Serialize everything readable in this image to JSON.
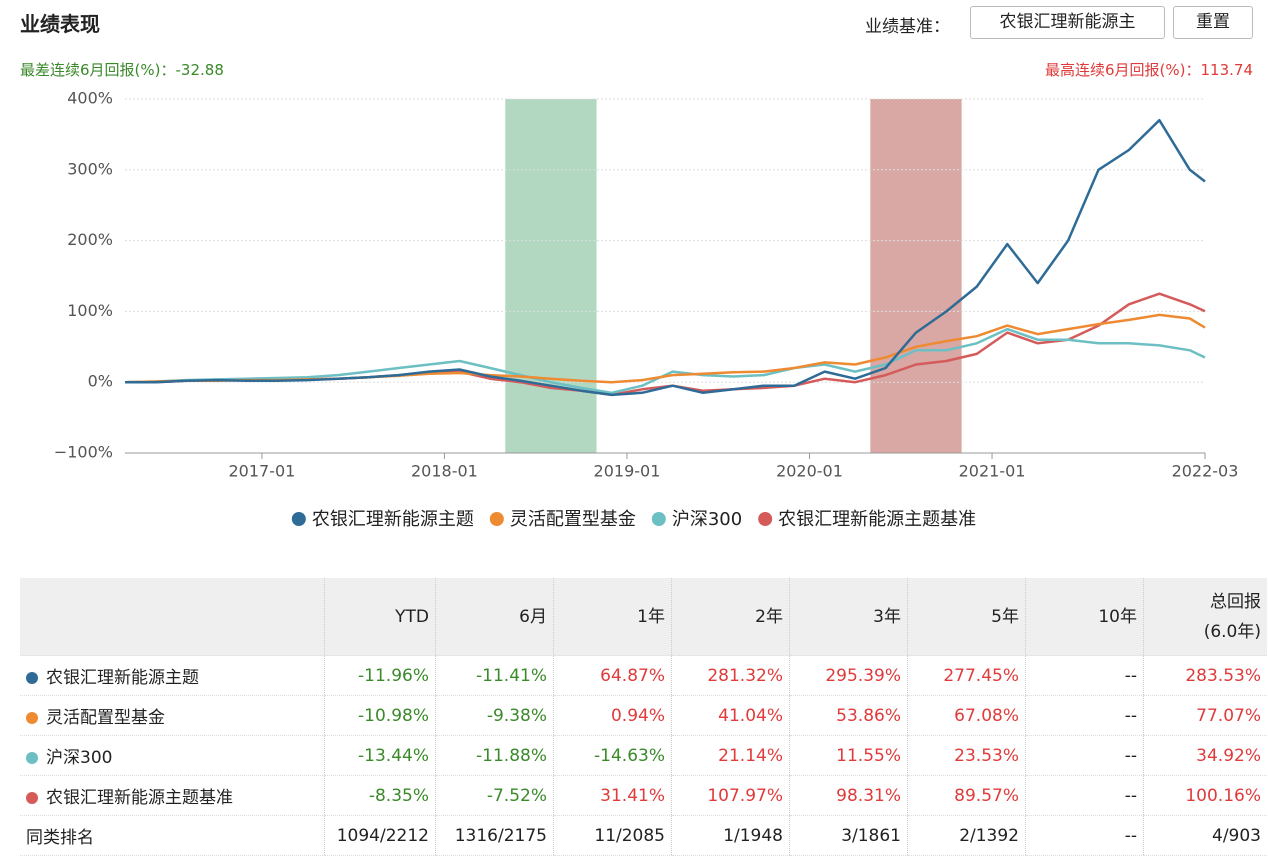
{
  "header": {
    "title": "业绩表现",
    "benchmark_label": "业绩基准：",
    "benchmark_select": "农银汇理新能源主",
    "reset_button": "重置"
  },
  "chart_data": {
    "type": "line",
    "annotations": {
      "worst_label": "最差连续6月回报(%)：",
      "worst_value": -32.88,
      "best_label": "最高连续6月回报(%)：",
      "best_value": 113.74
    },
    "x": [
      "2016-04",
      "2016-06",
      "2016-08",
      "2016-10",
      "2016-12",
      "2017-02",
      "2017-04",
      "2017-06",
      "2017-08",
      "2017-10",
      "2017-12",
      "2018-02",
      "2018-04",
      "2018-06",
      "2018-08",
      "2018-10",
      "2018-12",
      "2019-02",
      "2019-04",
      "2019-06",
      "2019-08",
      "2019-10",
      "2019-12",
      "2020-02",
      "2020-04",
      "2020-06",
      "2020-08",
      "2020-10",
      "2020-12",
      "2021-02",
      "2021-04",
      "2021-06",
      "2021-08",
      "2021-10",
      "2021-12",
      "2022-02",
      "2022-03"
    ],
    "series": [
      {
        "name": "农银汇理新能源主题",
        "color": "#2e6b97",
        "values": [
          0,
          0,
          2,
          3,
          2,
          2,
          3,
          5,
          7,
          10,
          15,
          18,
          8,
          2,
          -5,
          -12,
          -18,
          -15,
          -5,
          -15,
          -10,
          -5,
          -5,
          15,
          5,
          20,
          70,
          100,
          135,
          195,
          140,
          200,
          300,
          328,
          370,
          300,
          283.53
        ]
      },
      {
        "name": "灵活配置型基金",
        "color": "#ee8a32",
        "values": [
          0,
          1,
          2,
          2,
          3,
          3,
          4,
          5,
          7,
          9,
          12,
          13,
          10,
          8,
          5,
          2,
          0,
          3,
          10,
          12,
          14,
          15,
          20,
          28,
          25,
          35,
          50,
          58,
          65,
          80,
          68,
          75,
          82,
          88,
          95,
          90,
          77.07
        ]
      },
      {
        "name": "沪深300",
        "color": "#6cbfc3",
        "values": [
          0,
          1,
          3,
          4,
          5,
          6,
          7,
          10,
          15,
          20,
          25,
          30,
          20,
          10,
          0,
          -8,
          -15,
          -5,
          15,
          10,
          8,
          10,
          20,
          25,
          15,
          25,
          45,
          45,
          55,
          75,
          60,
          60,
          55,
          55,
          52,
          45,
          34.92
        ]
      },
      {
        "name": "农银汇理新能源主题基准",
        "color": "#d55a5a",
        "values": [
          0,
          0,
          2,
          3,
          3,
          3,
          4,
          5,
          7,
          10,
          14,
          15,
          5,
          0,
          -8,
          -12,
          -18,
          -10,
          -5,
          -12,
          -10,
          -8,
          -5,
          5,
          0,
          10,
          25,
          30,
          40,
          70,
          55,
          60,
          80,
          110,
          125,
          110,
          100.16
        ]
      }
    ],
    "bands": [
      {
        "start": "2018-05",
        "end": "2018-11",
        "color": "#b3d8c2"
      },
      {
        "start": "2020-05",
        "end": "2020-11",
        "color": "#d9a8a4"
      }
    ],
    "xlim": [
      "2016-04",
      "2022-03"
    ],
    "xticks": [
      "2017-01",
      "2018-01",
      "2019-01",
      "2020-01",
      "2021-01",
      "2022-03"
    ],
    "ylim": [
      -100,
      400
    ],
    "yticks": [
      {
        "value": -100,
        "label": "−100%"
      },
      {
        "value": 0,
        "label": "0%"
      },
      {
        "value": 100,
        "label": "100%"
      },
      {
        "value": 200,
        "label": "200%"
      },
      {
        "value": 300,
        "label": "300%"
      },
      {
        "value": 400,
        "label": "400%"
      }
    ],
    "grid": true
  },
  "table": {
    "header": [
      "YTD",
      "6月",
      "1年",
      "2年",
      "3年",
      "5年",
      "10年",
      [
        "总回报",
        "(6.0年)"
      ]
    ],
    "rows": [
      [
        "农银汇理新能源主题",
        "-11.96%",
        "-11.41%",
        "64.87%",
        "281.32%",
        "295.39%",
        "277.45%",
        "--",
        "283.53%"
      ],
      [
        "灵活配置型基金",
        "-10.98%",
        "-9.38%",
        "0.94%",
        "41.04%",
        "53.86%",
        "67.08%",
        "--",
        "77.07%"
      ],
      [
        "沪深300",
        "-13.44%",
        "-11.88%",
        "-14.63%",
        "21.14%",
        "11.55%",
        "23.53%",
        "--",
        "34.92%"
      ],
      [
        "农银汇理新能源主题基准",
        "-8.35%",
        "-7.52%",
        "31.41%",
        "107.97%",
        "98.31%",
        "89.57%",
        "--",
        "100.16%"
      ],
      [
        "同类排名",
        "1094/2212",
        "1316/2175",
        "11/2085",
        "1/1948",
        "3/1861",
        "2/1392",
        "--",
        "4/903"
      ]
    ]
  }
}
